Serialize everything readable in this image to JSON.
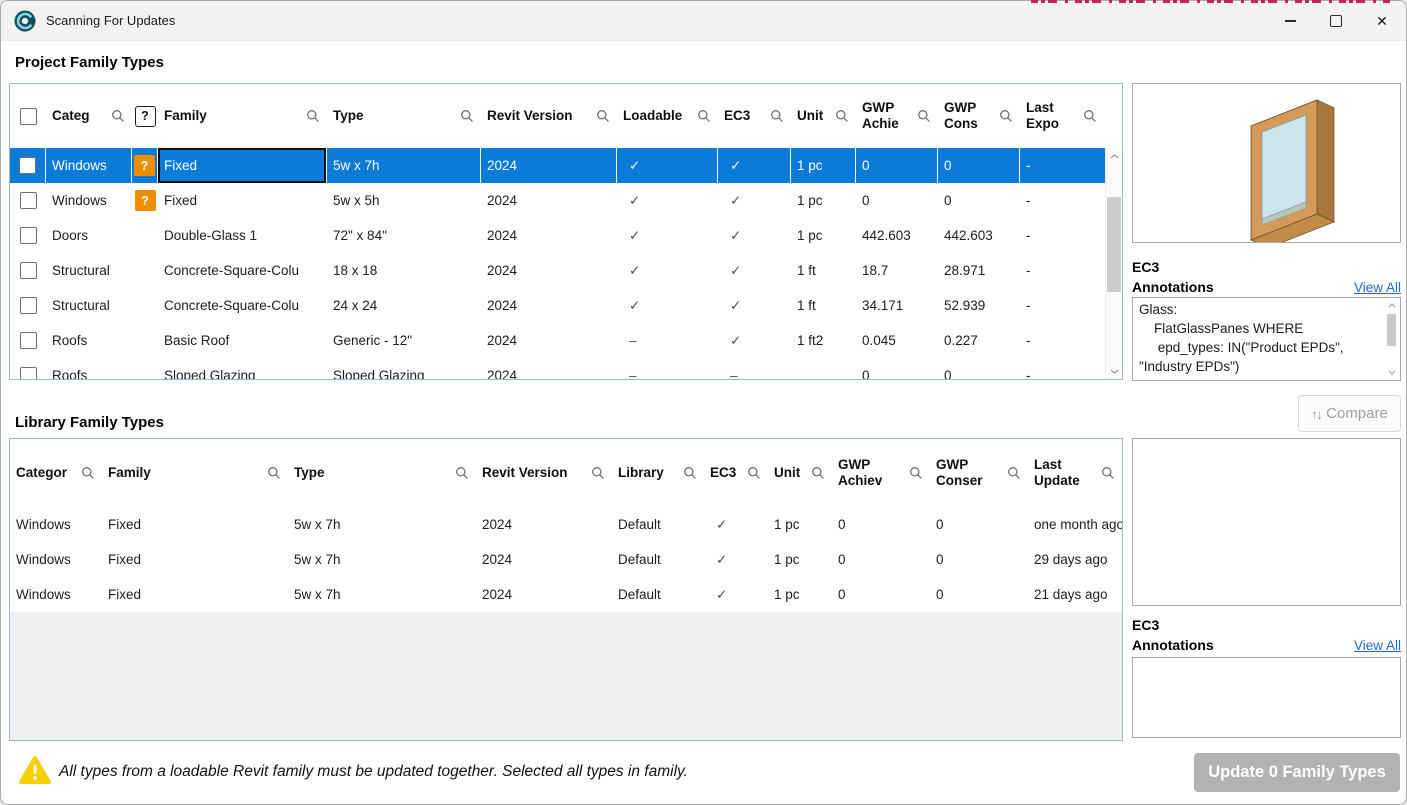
{
  "window": {
    "title": "Scanning For Updates",
    "close_glyph": "✕"
  },
  "icons": {
    "question_mark": "?",
    "compare_arrows": "↑↓"
  },
  "project_section": {
    "heading": "Project Family Types"
  },
  "library_section": {
    "heading": "Library Family Types"
  },
  "project_table": {
    "columns": {
      "category": "Categ",
      "family": "Family",
      "type": "Type",
      "revit": "Revit Version",
      "loadable": "Loadable",
      "ec3": "EC3",
      "unit": "Unit",
      "gwp_a": "GWP\nAchie",
      "gwp_c": "GWP\nCons",
      "last": "Last\nExpo"
    },
    "rows": [
      {
        "selected": true,
        "focus": "family",
        "category": "Windows",
        "q": "?",
        "family": "Fixed",
        "type": "5w x 7h",
        "revit": "2024",
        "loadable": "✓",
        "ec3": "✓",
        "unit": "1 pc",
        "gwp_a": "0",
        "gwp_c": "0",
        "last": "-"
      },
      {
        "category": "Windows",
        "q": "?",
        "family": "Fixed",
        "type": "5w x 5h",
        "revit": "2024",
        "loadable": "✓",
        "ec3": "✓",
        "unit": "1 pc",
        "gwp_a": "0",
        "gwp_c": "0",
        "last": "-"
      },
      {
        "category": "Doors",
        "family": "Double-Glass 1",
        "type": "72\" x 84\"",
        "revit": "2024",
        "loadable": "✓",
        "ec3": "✓",
        "unit": "1 pc",
        "gwp_a": "442.603",
        "gwp_c": "442.603",
        "last": "-"
      },
      {
        "category": "Structural",
        "family": "Concrete-Square-Colu",
        "type": "18 x 18",
        "revit": "2024",
        "loadable": "✓",
        "ec3": "✓",
        "unit": "1 ft",
        "gwp_a": "18.7",
        "gwp_c": "28.971",
        "last": "-"
      },
      {
        "category": "Structural",
        "family": "Concrete-Square-Colu",
        "type": "24 x 24",
        "revit": "2024",
        "loadable": "✓",
        "ec3": "✓",
        "unit": "1 ft",
        "gwp_a": "34.171",
        "gwp_c": "52.939",
        "last": "-"
      },
      {
        "category": "Roofs",
        "family": "Basic Roof",
        "type": "Generic - 12\"",
        "revit": "2024",
        "loadable": "–",
        "ec3": "✓",
        "unit": "1 ft2",
        "gwp_a": "0.045",
        "gwp_c": "0.227",
        "last": "-"
      },
      {
        "category": "Roofs",
        "family": "Sloped Glazing",
        "type": "Sloped Glazing",
        "revit": "2024",
        "loadable": "–",
        "ec3": "–",
        "unit": "",
        "gwp_a": "0",
        "gwp_c": "0",
        "last": "-"
      }
    ]
  },
  "library_table": {
    "columns": {
      "category": "Categor",
      "family": "Family",
      "type": "Type",
      "revit": "Revit Version",
      "library": "Library",
      "ec3": "EC3",
      "unit": "Unit",
      "gwp_a": "GWP\nAchiev",
      "gwp_c": "GWP\nConser",
      "last": "Last\nUpdate"
    },
    "rows": [
      {
        "category": "Windows",
        "family": "Fixed",
        "type": "5w x 7h",
        "revit": "2024",
        "library": "Default",
        "ec3": "✓",
        "unit": "1 pc",
        "gwp_a": "0",
        "gwp_c": "0",
        "last": "one month ago"
      },
      {
        "category": "Windows",
        "family": "Fixed",
        "type": "5w x 7h",
        "revit": "2024",
        "library": "Default",
        "ec3": "✓",
        "unit": "1 pc",
        "gwp_a": "0",
        "gwp_c": "0",
        "last": "29 days ago"
      },
      {
        "category": "Windows",
        "family": "Fixed",
        "type": "5w x 7h",
        "revit": "2024",
        "library": "Default",
        "ec3": "✓",
        "unit": "1 pc",
        "gwp_a": "0",
        "gwp_c": "0",
        "last": "21 days ago"
      }
    ]
  },
  "detail_project": {
    "panel_title": "EC3",
    "annotations_label": "Annotations",
    "view_all": "View All",
    "annotation_text": "Glass:\n    FlatGlassPanes WHERE\n     epd_types: IN(\"Product EPDs\",\n\"Industry EPDs\")"
  },
  "detail_library": {
    "panel_title": "EC3",
    "annotations_label": "Annotations",
    "view_all": "View All",
    "annotation_text": ""
  },
  "compare_button": {
    "label": "Compare"
  },
  "footer": {
    "warning_text": "All types from a loadable Revit family must be updated together. Selected all types in family.",
    "update_button": "Update 0 Family Types"
  }
}
